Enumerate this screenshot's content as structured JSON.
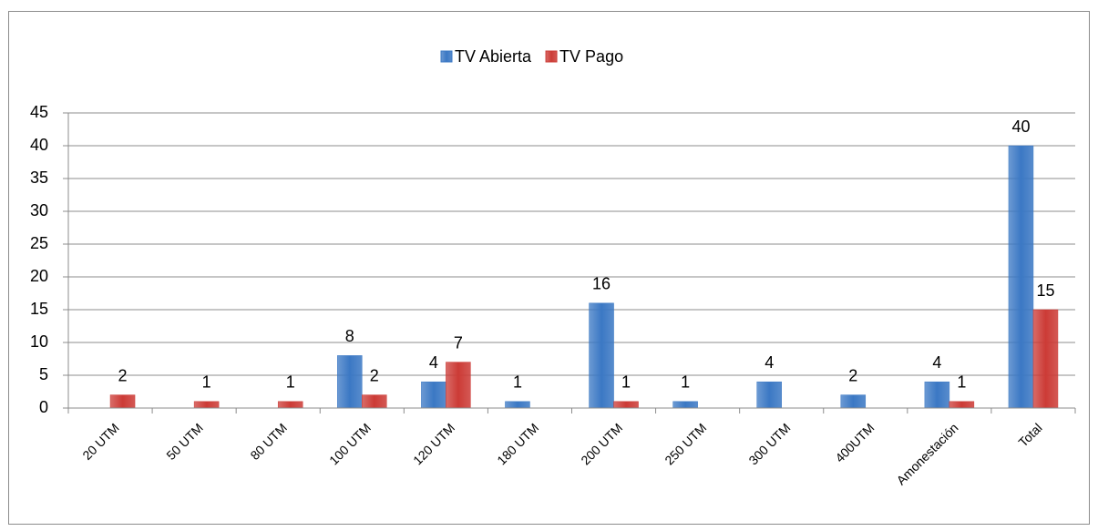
{
  "chart_data": {
    "type": "bar",
    "categories": [
      "20 UTM",
      "50 UTM",
      "80 UTM",
      "100 UTM",
      "120 UTM",
      "180 UTM",
      "200 UTM",
      "250 UTM",
      "300 UTM",
      "400UTM",
      "Amonestación",
      "Total"
    ],
    "series": [
      {
        "name": "TV Abierta",
        "color": "#3b78c4",
        "values": [
          null,
          null,
          null,
          8,
          4,
          1,
          16,
          1,
          4,
          2,
          4,
          40
        ]
      },
      {
        "name": "TV Pago",
        "color": "#cc3b36",
        "values": [
          2,
          1,
          1,
          2,
          7,
          null,
          1,
          null,
          null,
          null,
          1,
          15
        ]
      }
    ],
    "ylim": [
      0,
      45
    ],
    "yticks": [
      0,
      5,
      10,
      15,
      20,
      25,
      30,
      35,
      40,
      45
    ],
    "grid": true,
    "legend": "top"
  }
}
